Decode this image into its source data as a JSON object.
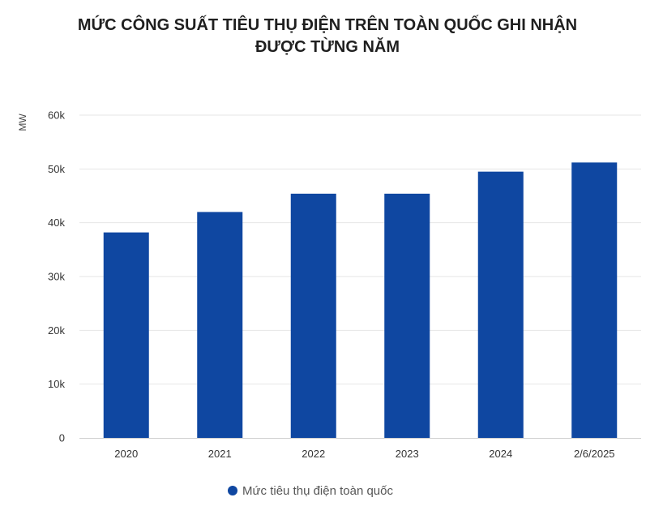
{
  "chart_data": {
    "type": "bar",
    "title_lines": [
      "MỨC CÔNG SUẤT TIÊU THỤ ĐIỆN TRÊN TOÀN QUỐC GHI NHẬN",
      "ĐƯỢC TỪNG NĂM"
    ],
    "ylabel": "MW",
    "xlabel": "",
    "categories": [
      "2020",
      "2021",
      "2022",
      "2023",
      "2024",
      "2/6/2025"
    ],
    "series": [
      {
        "name": "Mức tiêu thụ điện toàn quốc",
        "values": [
          38200,
          42000,
          45400,
          45400,
          49500,
          51200
        ],
        "color": "#0f47a1"
      }
    ],
    "ylim": [
      0,
      60000
    ],
    "yticks": [
      0,
      10000,
      20000,
      30000,
      40000,
      50000,
      60000
    ],
    "ytick_labels": [
      "0",
      "10k",
      "20k",
      "30k",
      "40k",
      "50k",
      "60k"
    ],
    "grid": true,
    "legend_position": "bottom-center",
    "gridline_color": "#e6e6e6",
    "axis_line_color": "#cfcfcf"
  }
}
